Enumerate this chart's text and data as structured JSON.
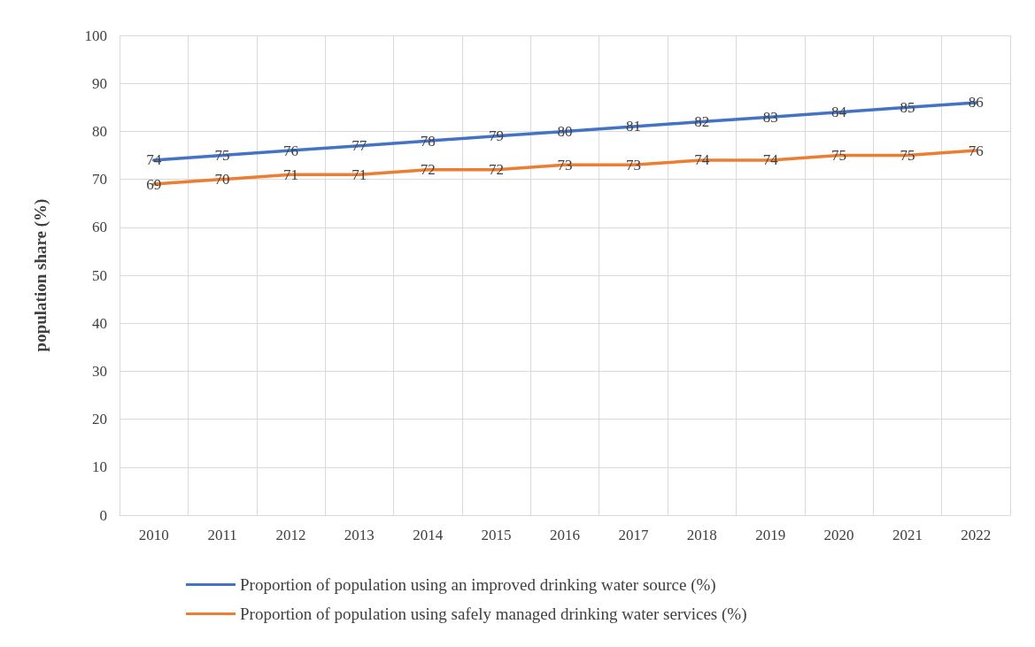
{
  "chart_data": {
    "type": "line",
    "ylabel": "population share (%)",
    "categories": [
      "2010",
      "2011",
      "2012",
      "2013",
      "2014",
      "2015",
      "2016",
      "2017",
      "2018",
      "2019",
      "2020",
      "2021",
      "2022"
    ],
    "series": [
      {
        "name": "Proportion of population using an improved drinking water source (%)",
        "color": "#4472c4",
        "values": [
          74,
          75,
          76,
          77,
          78,
          79,
          80,
          81,
          82,
          83,
          84,
          85,
          86
        ]
      },
      {
        "name": "Proportion of population using safely managed drinking water services (%)",
        "color": "#ed7d31",
        "values": [
          69,
          70,
          71,
          71,
          72,
          72,
          73,
          73,
          74,
          74,
          75,
          75,
          76
        ]
      }
    ],
    "ylim": [
      0,
      100
    ],
    "yticks": [
      0,
      10,
      20,
      30,
      40,
      50,
      60,
      70,
      80,
      90,
      100
    ],
    "grid": true,
    "legend": "bottom",
    "marker": "none",
    "line_style": "solid",
    "data_labels": true
  }
}
